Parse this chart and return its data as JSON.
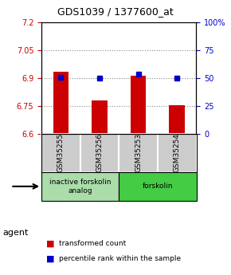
{
  "title": "GDS1039 / 1377600_at",
  "samples": [
    "GSM35255",
    "GSM35256",
    "GSM35253",
    "GSM35254"
  ],
  "bar_values": [
    6.935,
    6.78,
    6.91,
    6.755
  ],
  "percentile_values": [
    6.905,
    6.898,
    6.918,
    6.898
  ],
  "ylim_left": [
    6.6,
    7.2
  ],
  "ylim_right": [
    0,
    100
  ],
  "yticks_left": [
    6.6,
    6.75,
    6.9,
    7.05,
    7.2
  ],
  "ytick_labels_left": [
    "6.6",
    "6.75",
    "6.9",
    "7.05",
    "7.2"
  ],
  "yticks_right": [
    0,
    25,
    50,
    75,
    100
  ],
  "ytick_labels_right": [
    "0",
    "25",
    "50",
    "75",
    "100%"
  ],
  "bar_color": "#cc0000",
  "dot_color": "#0000cc",
  "bar_bottom": 6.6,
  "groups": [
    {
      "label": "inactive forskolin\nanalog",
      "samples": [
        0,
        1
      ],
      "color": "#aaddaa"
    },
    {
      "label": "forskolin",
      "samples": [
        2,
        3
      ],
      "color": "#44cc44"
    }
  ],
  "agent_label": "agent",
  "legend_bar_label": "transformed count",
  "legend_dot_label": "percentile rank within the sample",
  "grid_color": "#888888",
  "grid_ticks": [
    6.75,
    6.9,
    7.05
  ],
  "sample_box_color": "#cccccc",
  "background_color": "#ffffff"
}
